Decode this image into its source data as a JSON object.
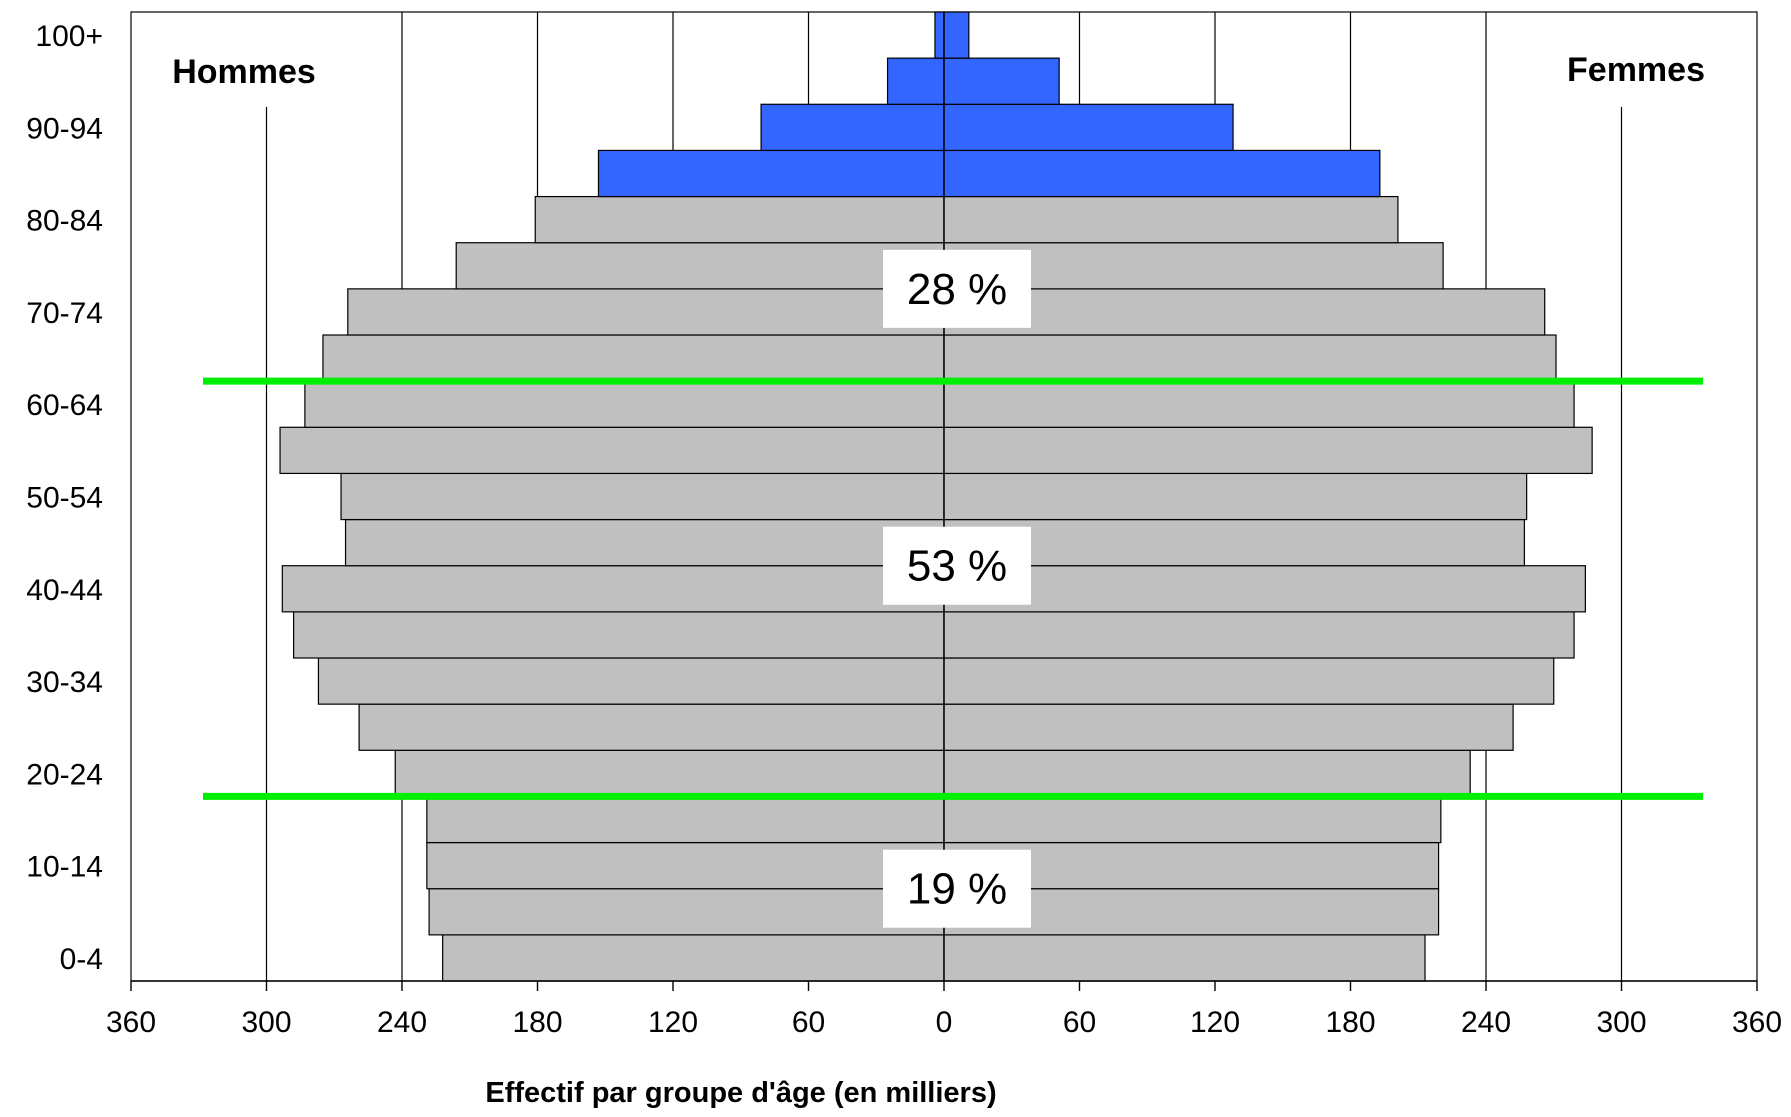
{
  "chart_data": {
    "type": "bar",
    "orientation": "horizontal-pyramid",
    "xlabel": "Effectif par groupe d'âge (en milliers)",
    "xlim": [
      -360,
      360
    ],
    "x_ticks": [
      360,
      300,
      240,
      180,
      120,
      60,
      0,
      60,
      120,
      180,
      240,
      300,
      360
    ],
    "y_tick_labels": [
      "100+",
      "90-94",
      "80-84",
      "70-74",
      "60-64",
      "50-54",
      "40-44",
      "30-34",
      "20-24",
      "10-14",
      "0-4"
    ],
    "grid": true,
    "side_labels": {
      "left": "Hommes",
      "right": "Femmes"
    },
    "categories": [
      "0-4",
      "5-9",
      "10-14",
      "15-19",
      "20-24",
      "25-29",
      "30-34",
      "35-39",
      "40-44",
      "45-49",
      "50-54",
      "55-59",
      "60-64",
      "65-69",
      "70-74",
      "75-79",
      "80-84",
      "85-89",
      "90-94",
      "95-99",
      "100+"
    ],
    "series": [
      {
        "name": "Hommes",
        "values": [
          222,
          228,
          229,
          229,
          243,
          259,
          277,
          288,
          293,
          265,
          267,
          294,
          283,
          275,
          264,
          216,
          181,
          153,
          81,
          25,
          4
        ]
      },
      {
        "name": "Femmes",
        "values": [
          213,
          219,
          219,
          220,
          233,
          252,
          270,
          279,
          284,
          257,
          258,
          287,
          279,
          271,
          266,
          221,
          201,
          193,
          128,
          51,
          11
        ]
      }
    ],
    "colors": {
      "bar_default": "#c0c0c0",
      "bar_highlight": "#3366ff",
      "threshold_line": "#00ee00",
      "grid": "#000000"
    },
    "highlighted_categories": [
      "85-89",
      "90-94",
      "95-99",
      "100+"
    ],
    "threshold_lines_between": [
      [
        "15-19",
        "20-24"
      ],
      [
        "60-64",
        "65-69"
      ]
    ],
    "annotations": [
      {
        "text": "28 %",
        "category": "70-74"
      },
      {
        "text": "53 %",
        "category": "40-44"
      },
      {
        "text": "19 %",
        "category": "5-9"
      }
    ]
  }
}
